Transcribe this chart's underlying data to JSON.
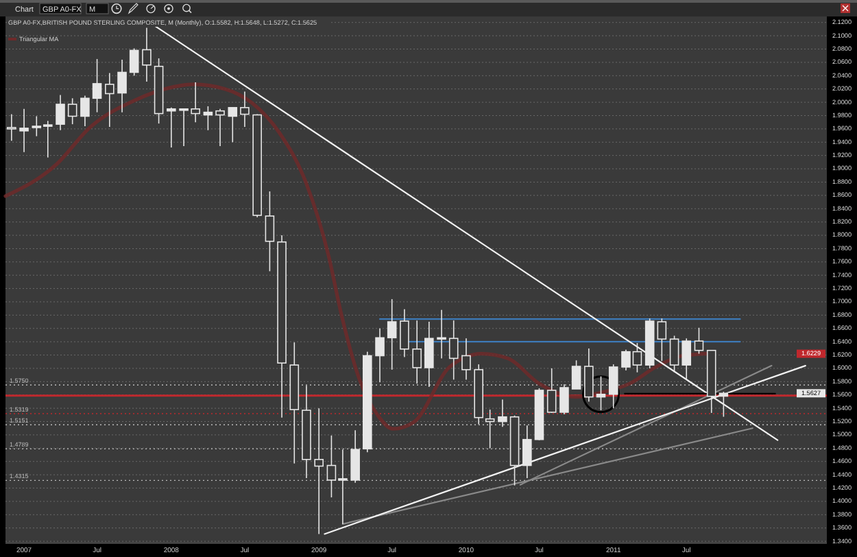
{
  "chart_data": {
    "type": "candlestick",
    "title": "GBP A0-FX,BRITISH POUND STERLING COMPOSITE, M (Monthly), O:1.5582, H:1.5648, L:1.5272, C:1.5625",
    "annotations": [
      "Chart",
      "GBP A0-FX",
      "M",
      "1.6229",
      "1.5627"
    ],
    "xlim": [
      "2006-11-16",
      "2012-06-13"
    ],
    "xticks": [
      {
        "value": "2007-01",
        "label": "2007"
      },
      {
        "value": "2007-07",
        "label": "Jul"
      },
      {
        "value": "2008-01",
        "label": "2008"
      },
      {
        "value": "2008-07",
        "label": "Jul"
      },
      {
        "value": "2009-01",
        "label": "2009"
      },
      {
        "value": "2009-07",
        "label": "Jul"
      },
      {
        "value": "2010-01",
        "label": "2010"
      },
      {
        "value": "2010-07",
        "label": "Jul"
      },
      {
        "value": "2011-01",
        "label": "2011"
      },
      {
        "value": "2011-07",
        "label": "Jul"
      }
    ],
    "ylim": [
      1.337,
      2.129
    ],
    "yticks": [
      {
        "value": 1.34,
        "label": "1.3400"
      },
      {
        "value": 1.36,
        "label": "1.3600"
      },
      {
        "value": 1.38,
        "label": "1.3800"
      },
      {
        "value": 1.4,
        "label": "1.4000"
      },
      {
        "value": 1.42,
        "label": "1.4200"
      },
      {
        "value": 1.44,
        "label": "1.4400"
      },
      {
        "value": 1.46,
        "label": "1.4600"
      },
      {
        "value": 1.48,
        "label": "1.4800"
      },
      {
        "value": 1.5,
        "label": "1.5000"
      },
      {
        "value": 1.52,
        "label": "1.5200"
      },
      {
        "value": 1.54,
        "label": "1.5400"
      },
      {
        "value": 1.56,
        "label": "1.5600"
      },
      {
        "value": 1.58,
        "label": "1.5800"
      },
      {
        "value": 1.6,
        "label": "1.6000"
      },
      {
        "value": 1.62,
        "label": "1.6200"
      },
      {
        "value": 1.64,
        "label": "1.6400"
      },
      {
        "value": 1.66,
        "label": "1.6600"
      },
      {
        "value": 1.68,
        "label": "1.6800"
      },
      {
        "value": 1.7,
        "label": "1.7000"
      },
      {
        "value": 1.72,
        "label": "1.7200"
      },
      {
        "value": 1.74,
        "label": "1.7400"
      },
      {
        "value": 1.76,
        "label": "1.7600"
      },
      {
        "value": 1.78,
        "label": "1.7800"
      },
      {
        "value": 1.8,
        "label": "1.8000"
      },
      {
        "value": 1.82,
        "label": "1.8200"
      },
      {
        "value": 1.84,
        "label": "1.8400"
      },
      {
        "value": 1.86,
        "label": "1.8600"
      },
      {
        "value": 1.88,
        "label": "1.8800"
      },
      {
        "value": 1.9,
        "label": "1.9000"
      },
      {
        "value": 1.92,
        "label": "1.9200"
      },
      {
        "value": 1.94,
        "label": "1.9400"
      },
      {
        "value": 1.96,
        "label": "1.9600"
      },
      {
        "value": 1.98,
        "label": "1.9800"
      },
      {
        "value": 2.0,
        "label": "2.0000"
      },
      {
        "value": 2.02,
        "label": "2.0200"
      },
      {
        "value": 2.04,
        "label": "2.0400"
      },
      {
        "value": 2.06,
        "label": "2.0600"
      },
      {
        "value": 2.08,
        "label": "2.0800"
      },
      {
        "value": 2.1,
        "label": "2.1000"
      },
      {
        "value": 2.12,
        "label": "2.1200"
      }
    ],
    "grid": "y",
    "legend": "top left",
    "ref_lines": [
      {
        "axis": "y",
        "value": 1.575,
        "label": "1.5750",
        "color": "#bbbbbb",
        "line_style": "dotted"
      },
      {
        "axis": "y",
        "value": 1.559,
        "color": "#c0282d",
        "line_style": "solid"
      },
      {
        "axis": "y",
        "value": 1.5319,
        "label": "1.5319",
        "color": "#c0282d",
        "line_style": "dotted"
      },
      {
        "axis": "y",
        "value": 1.5151,
        "label": "1.5151",
        "color": "#bbbbbb",
        "line_style": "dotted"
      },
      {
        "axis": "y",
        "value": 1.4789,
        "label": "1.4789",
        "color": "#bbbbbb",
        "line_style": "dotted"
      },
      {
        "axis": "y",
        "value": 1.4315,
        "label": "1.4315",
        "color": "#bbbbbb",
        "line_style": "dotted"
      }
    ],
    "series": [
      {
        "type": "line",
        "name": "Triangular MA",
        "color": "#6e2a2a",
        "x": [
          "2006-11-16",
          "2007-03-23",
          "2007-06-13",
          "2007-10-03",
          "2008-01-23",
          "2008-02-25",
          "2008-05-13",
          "2008-07-19",
          "2008-09-24",
          "2008-11-30",
          "2009-01-25",
          "2009-02-26",
          "2009-04-11",
          "2009-05-26",
          "2009-07-04",
          "2009-08-24",
          "2009-11-21",
          "2010-02-08",
          "2010-04-14",
          "2010-07-01",
          "2010-09-29",
          "2010-12-04",
          "2011-02-10",
          "2011-04-16",
          "2011-06-22",
          "2011-08-20"
        ],
        "values": [
          1.859,
          1.907,
          1.962,
          2.003,
          2.025,
          2.027,
          2.02,
          1.999,
          1.955,
          1.879,
          1.769,
          1.68,
          1.584,
          1.53,
          1.509,
          1.519,
          1.602,
          1.622,
          1.615,
          1.577,
          1.557,
          1.564,
          1.577,
          1.602,
          1.619,
          1.622
        ]
      },
      {
        "type": "line",
        "color": "#3d7ab8",
        "x": [
          "2009-06-01",
          "2011-11-11"
        ],
        "values": [
          1.674,
          1.674
        ]
      },
      {
        "type": "line",
        "color": "#3d7ab8",
        "x": [
          "2009-08-01",
          "2011-11-11"
        ],
        "values": [
          1.64,
          1.64
        ]
      },
      {
        "type": "line",
        "color": "#8a8a8a",
        "x": [
          "2009-03-01",
          "2011-12-12"
        ],
        "values": [
          1.366,
          1.51
        ]
      },
      {
        "type": "line",
        "color": "#8a8a8a",
        "x": [
          "2010-05-15",
          "2012-01-28"
        ],
        "values": [
          1.425,
          1.604
        ]
      },
      {
        "type": "line",
        "color": "#f2f2f2",
        "x": [
          "2007-10-27",
          "2012-02-12"
        ],
        "values": [
          2.125,
          1.492
        ]
      },
      {
        "type": "line",
        "color": "#f2f2f2",
        "x": [
          "2009-01-15",
          "2012-04-21"
        ],
        "values": [
          1.351,
          1.604
        ]
      },
      {
        "type": "line",
        "color": "#000000",
        "x": [
          "2011-01-29",
          "2012-02-06"
        ],
        "values": [
          1.562,
          1.562
        ]
      },
      {
        "color": "#e6e6e6",
        "x": [
          "2006-12",
          "2007-01",
          "2007-02",
          "2007-03",
          "2007-04",
          "2007-05",
          "2007-06",
          "2007-07",
          "2007-08",
          "2007-09",
          "2007-10",
          "2007-11",
          "2007-12",
          "2008-01",
          "2008-02",
          "2008-03",
          "2008-04",
          "2008-05",
          "2008-06",
          "2008-07",
          "2008-08",
          "2008-09",
          "2008-10",
          "2008-11",
          "2008-12",
          "2009-01",
          "2009-02",
          "2009-03",
          "2009-04",
          "2009-05",
          "2009-06",
          "2009-07",
          "2009-08",
          "2009-09",
          "2009-10",
          "2009-11",
          "2009-12",
          "2010-01",
          "2010-02",
          "2010-03",
          "2010-04",
          "2010-05",
          "2010-06",
          "2010-07",
          "2010-08",
          "2010-09",
          "2010-10",
          "2010-11",
          "2010-12",
          "2011-01",
          "2011-02",
          "2011-03",
          "2011-04",
          "2011-05",
          "2011-06",
          "2011-07",
          "2011-08",
          "2011-09",
          "2011-10"
        ],
        "ohlc": [
          [
            1.962,
            1.982,
            1.942,
            1.96
          ],
          [
            1.957,
            1.99,
            1.925,
            1.961
          ],
          [
            1.962,
            1.979,
            1.949,
            1.964
          ],
          [
            1.964,
            1.972,
            1.917,
            1.966
          ],
          [
            1.967,
            2.011,
            1.958,
            1.997
          ],
          [
            1.997,
            2.006,
            1.967,
            1.979
          ],
          [
            1.979,
            2.01,
            1.964,
            2.006
          ],
          [
            2.006,
            2.065,
            1.985,
            2.028
          ],
          [
            2.027,
            2.044,
            1.963,
            2.013
          ],
          [
            2.014,
            2.064,
            1.985,
            2.045
          ],
          [
            2.045,
            2.081,
            2.04,
            2.078
          ],
          [
            2.079,
            2.112,
            2.031,
            2.056
          ],
          [
            2.054,
            2.066,
            1.968,
            1.983
          ],
          [
            1.987,
            1.992,
            1.932,
            1.99
          ],
          [
            1.988,
            1.99,
            1.934,
            1.99
          ],
          [
            1.99,
            2.03,
            1.97,
            1.983
          ],
          [
            1.981,
            1.994,
            1.958,
            1.985
          ],
          [
            1.987,
            1.99,
            1.934,
            1.981
          ],
          [
            1.979,
            1.992,
            1.94,
            1.992
          ],
          [
            1.992,
            2.016,
            1.963,
            1.982
          ],
          [
            1.981,
            1.982,
            1.827,
            1.83
          ],
          [
            1.829,
            1.866,
            1.746,
            1.791
          ],
          [
            1.79,
            1.8,
            1.526,
            1.608
          ],
          [
            1.605,
            1.639,
            1.457,
            1.538
          ],
          [
            1.537,
            1.574,
            1.435,
            1.463
          ],
          [
            1.463,
            1.54,
            1.351,
            1.453
          ],
          [
            1.454,
            1.499,
            1.406,
            1.432
          ],
          [
            1.432,
            1.478,
            1.366,
            1.434
          ],
          [
            1.432,
            1.507,
            1.428,
            1.478
          ],
          [
            1.479,
            1.625,
            1.474,
            1.619
          ],
          [
            1.619,
            1.66,
            1.579,
            1.646
          ],
          [
            1.646,
            1.704,
            1.598,
            1.67
          ],
          [
            1.671,
            1.689,
            1.617,
            1.629
          ],
          [
            1.629,
            1.672,
            1.577,
            1.601
          ],
          [
            1.601,
            1.67,
            1.572,
            1.645
          ],
          [
            1.645,
            1.688,
            1.615,
            1.646
          ],
          [
            1.645,
            1.672,
            1.583,
            1.615
          ],
          [
            1.619,
            1.645,
            1.583,
            1.598
          ],
          [
            1.598,
            1.606,
            1.516,
            1.526
          ],
          [
            1.524,
            1.538,
            1.48,
            1.52
          ],
          [
            1.52,
            1.553,
            1.512,
            1.527
          ],
          [
            1.527,
            1.529,
            1.424,
            1.454
          ],
          [
            1.454,
            1.514,
            1.435,
            1.493
          ],
          [
            1.493,
            1.57,
            1.492,
            1.567
          ],
          [
            1.567,
            1.6,
            1.533,
            1.534
          ],
          [
            1.534,
            1.576,
            1.531,
            1.571
          ],
          [
            1.569,
            1.612,
            1.569,
            1.603
          ],
          [
            1.603,
            1.63,
            1.55,
            1.557
          ],
          [
            1.557,
            1.588,
            1.537,
            1.561
          ],
          [
            1.561,
            1.606,
            1.54,
            1.602
          ],
          [
            1.602,
            1.628,
            1.597,
            1.625
          ],
          [
            1.625,
            1.638,
            1.594,
            1.605
          ],
          [
            1.605,
            1.675,
            1.6,
            1.671
          ],
          [
            1.67,
            1.675,
            1.611,
            1.644
          ],
          [
            1.644,
            1.649,
            1.594,
            1.605
          ],
          [
            1.605,
            1.645,
            1.584,
            1.641
          ],
          [
            1.641,
            1.661,
            1.622,
            1.627
          ],
          [
            1.627,
            1.627,
            1.533,
            1.558
          ],
          [
            1.5582,
            1.5648,
            1.5272,
            1.5625
          ]
        ]
      }
    ]
  }
}
